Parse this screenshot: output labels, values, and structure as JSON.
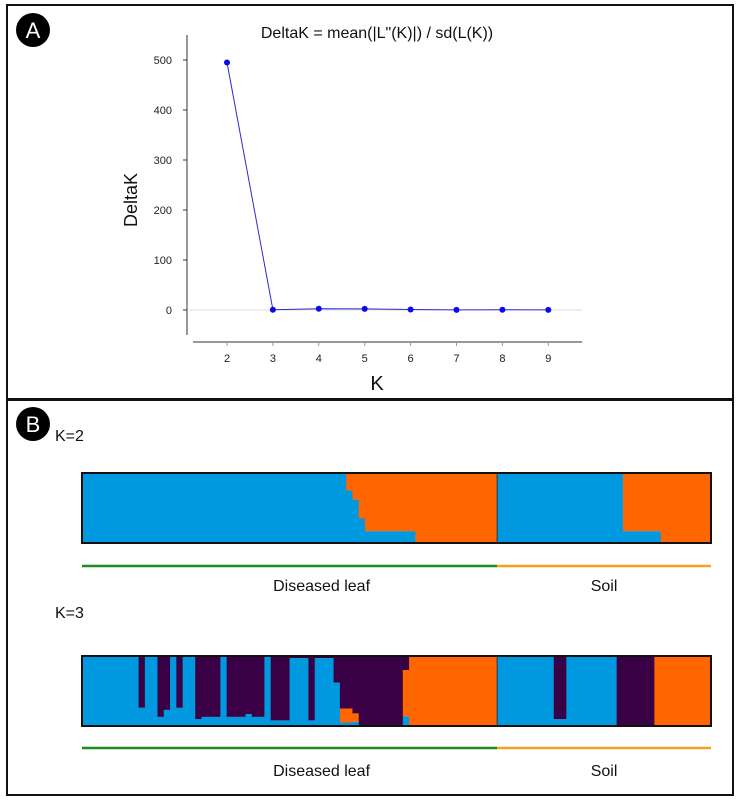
{
  "panel_a": {
    "label": "A"
  },
  "panel_b": {
    "label": "B"
  },
  "colors": {
    "blue": "#0099e0",
    "orange": "#ff6600",
    "purple": "#3a0046",
    "line": "#2a2acc",
    "point": "#0a0aee",
    "group_leaf": "#1e8c1e",
    "group_soil": "#f5a020"
  },
  "chart_data": [
    {
      "type": "line",
      "title": "DeltaK = mean(|L\"(K)|) / sd(L(K))",
      "xlabel": "K",
      "ylabel": "DeltaK",
      "x": [
        2,
        3,
        4,
        5,
        6,
        7,
        8,
        9
      ],
      "y": [
        495,
        0.5,
        2.5,
        2.3,
        1,
        0.3,
        0.5,
        0.2
      ],
      "xticks": [
        "2",
        "3",
        "4",
        "5",
        "6",
        "7",
        "8",
        "9"
      ],
      "yticks": [
        "0",
        "100",
        "200",
        "300",
        "400",
        "500"
      ],
      "ylim": [
        -50,
        550
      ],
      "grid": "zero-line only"
    },
    {
      "type": "bar",
      "subtype": "stacked membership (STRUCTURE)",
      "title": "K=2",
      "clusters": [
        "blue",
        "orange"
      ],
      "groups": [
        {
          "name": "Diseased leaf",
          "n": 66
        },
        {
          "name": "Soil",
          "n": 34
        }
      ],
      "runs": [
        {
          "n": 42,
          "q": [
            1,
            0
          ]
        },
        {
          "n": 1,
          "q": [
            0.75,
            0.25
          ]
        },
        {
          "n": 1,
          "q": [
            0.62,
            0.38
          ]
        },
        {
          "n": 1,
          "q": [
            0.35,
            0.65
          ]
        },
        {
          "n": 8,
          "q": [
            0.17,
            0.83
          ]
        },
        {
          "n": 13,
          "q": [
            0,
            1
          ]
        },
        {
          "n": 20,
          "q": [
            1,
            0
          ]
        },
        {
          "n": 6,
          "q": [
            0.17,
            0.83
          ]
        },
        {
          "n": 8,
          "q": [
            0,
            1
          ]
        }
      ]
    },
    {
      "type": "bar",
      "subtype": "stacked membership (STRUCTURE)",
      "title": "K=3",
      "clusters": [
        "blue",
        "orange",
        "purple"
      ],
      "groups": [
        {
          "name": "Diseased leaf",
          "n": 66
        },
        {
          "name": "Soil",
          "n": 34
        }
      ],
      "runs": [
        {
          "n": 9,
          "q": [
            1,
            0,
            0
          ]
        },
        {
          "n": 1,
          "q": [
            0.26,
            0,
            0.74
          ]
        },
        {
          "n": 2,
          "q": [
            1,
            0,
            0
          ]
        },
        {
          "n": 1,
          "q": [
            0.13,
            0,
            0.87
          ]
        },
        {
          "n": 1,
          "q": [
            0.23,
            0,
            0.77
          ]
        },
        {
          "n": 1,
          "q": [
            1,
            0,
            0
          ]
        },
        {
          "n": 1,
          "q": [
            0.26,
            0,
            0.74
          ]
        },
        {
          "n": 2,
          "q": [
            1,
            0,
            0
          ]
        },
        {
          "n": 1,
          "q": [
            0.1,
            0,
            0.9
          ]
        },
        {
          "n": 3,
          "q": [
            0.13,
            0,
            0.87
          ]
        },
        {
          "n": 1,
          "q": [
            1,
            0,
            0
          ]
        },
        {
          "n": 3,
          "q": [
            0.13,
            0,
            0.87
          ]
        },
        {
          "n": 1,
          "q": [
            0.17,
            0,
            0.83
          ]
        },
        {
          "n": 2,
          "q": [
            0.13,
            0,
            0.87
          ]
        },
        {
          "n": 1,
          "q": [
            1,
            0,
            0
          ]
        },
        {
          "n": 3,
          "q": [
            0.08,
            0,
            0.92
          ]
        },
        {
          "n": 3,
          "q": [
            0.97,
            0,
            0.03
          ]
        },
        {
          "n": 1,
          "q": [
            0.08,
            0,
            0.92
          ]
        },
        {
          "n": 3,
          "q": [
            0.97,
            0,
            0.03
          ]
        },
        {
          "n": 1,
          "q": [
            0.62,
            0,
            0.38
          ]
        },
        {
          "n": 2,
          "q": [
            0.05,
            0.2,
            0.75
          ]
        },
        {
          "n": 1,
          "q": [
            0.06,
            0.12,
            0.82
          ]
        },
        {
          "n": 7,
          "q": [
            0,
            0,
            1
          ]
        },
        {
          "n": 1,
          "q": [
            0.14,
            0.66,
            0.2
          ]
        },
        {
          "n": 14,
          "q": [
            0,
            1,
            0
          ]
        },
        {
          "n": 9,
          "q": [
            1,
            0,
            0
          ]
        },
        {
          "n": 2,
          "q": [
            0.1,
            0,
            0.9
          ]
        },
        {
          "n": 8,
          "q": [
            1,
            0,
            0
          ]
        },
        {
          "n": 6,
          "q": [
            0,
            0,
            1
          ]
        },
        {
          "n": 9,
          "q": [
            0,
            1,
            0
          ]
        }
      ]
    }
  ]
}
